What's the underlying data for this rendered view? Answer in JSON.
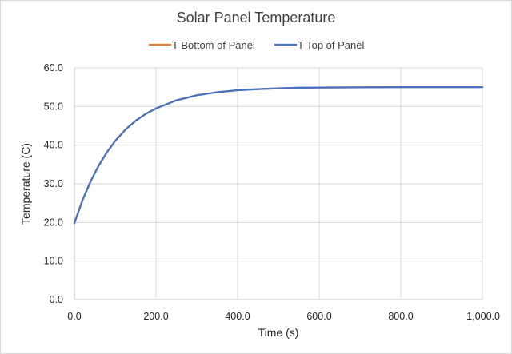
{
  "chart_data": {
    "type": "line",
    "title": "Solar Panel Temperature",
    "xlabel": "Time (s)",
    "ylabel": "Temperature (C)",
    "xlim": [
      0,
      1000
    ],
    "ylim": [
      0,
      60
    ],
    "x_ticks": [
      0,
      200,
      400,
      600,
      800,
      1000
    ],
    "x_tick_labels": [
      "0.0",
      "200.0",
      "400.0",
      "600.0",
      "800.0",
      "1,000.0"
    ],
    "y_ticks": [
      0,
      10,
      20,
      30,
      40,
      50,
      60
    ],
    "y_tick_labels": [
      "0.0",
      "10.0",
      "20.0",
      "30.0",
      "40.0",
      "50.0",
      "60.0"
    ],
    "grid": true,
    "legend_position": "top",
    "series": [
      {
        "name": "T Bottom of Panel",
        "color": "#ED7D31",
        "x": [
          0,
          20,
          40,
          60,
          80,
          100,
          125,
          150,
          175,
          200,
          250,
          300,
          350,
          400,
          450,
          500,
          550,
          600,
          700,
          800,
          900,
          1000
        ],
        "y": [
          19.8,
          25.8,
          30.7,
          34.8,
          38.2,
          41.1,
          44.0,
          46.3,
          48.1,
          49.5,
          51.6,
          52.9,
          53.7,
          54.2,
          54.5,
          54.7,
          54.85,
          54.9,
          54.95,
          55.0,
          55.0,
          55.0
        ]
      },
      {
        "name": "T Top of Panel",
        "color": "#4472C4",
        "x": [
          0,
          20,
          40,
          60,
          80,
          100,
          125,
          150,
          175,
          200,
          250,
          300,
          350,
          400,
          450,
          500,
          550,
          600,
          700,
          800,
          900,
          1000
        ],
        "y": [
          19.8,
          25.8,
          30.7,
          34.8,
          38.2,
          41.1,
          44.0,
          46.3,
          48.1,
          49.5,
          51.6,
          52.9,
          53.7,
          54.2,
          54.5,
          54.7,
          54.85,
          54.9,
          54.95,
          55.0,
          55.0,
          55.0
        ]
      }
    ]
  }
}
